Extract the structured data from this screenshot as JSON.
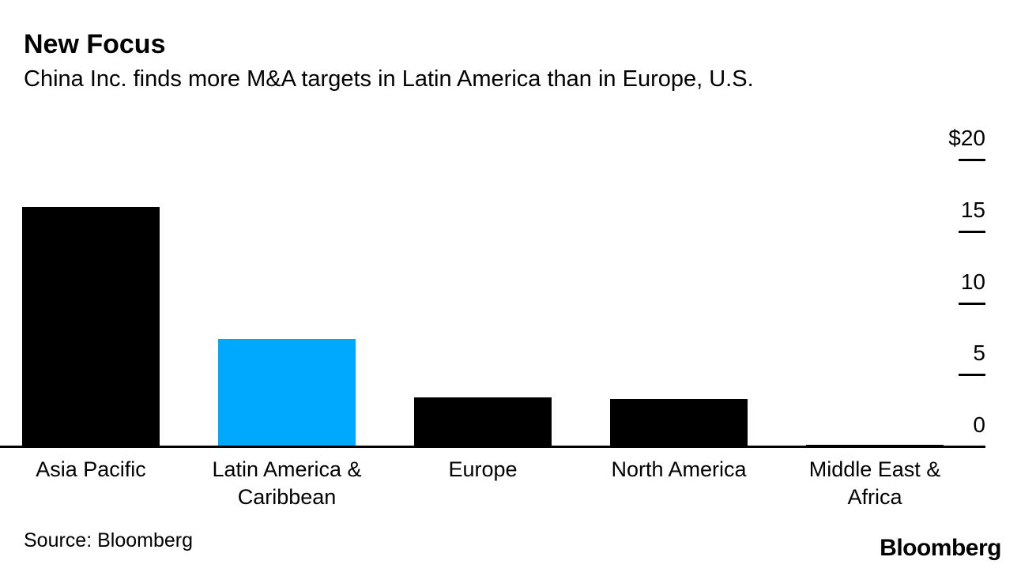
{
  "header": {
    "title": "New Focus",
    "subtitle": "China Inc. finds more M&A targets in Latin America than in Europe, U.S."
  },
  "footer": {
    "source_label": "Source: Bloomberg",
    "brand": "Bloomberg"
  },
  "colors": {
    "bar_default": "#000000",
    "bar_highlight": "#00a9fd",
    "axis": "#000000",
    "text": "#000000",
    "background": "#ffffff"
  },
  "chart_data": {
    "type": "bar",
    "title": "New Focus",
    "subtitle": "China Inc. finds more M&A targets in Latin America than in Europe, U.S.",
    "categories": [
      "Asia Pacific",
      "Latin America &\nCaribbean",
      "Europe",
      "North America",
      "Middle East &\nAfrica"
    ],
    "values": [
      16.8,
      7.6,
      3.5,
      3.4,
      0.2
    ],
    "bar_colors": [
      "#000000",
      "#00a9fd",
      "#000000",
      "#000000",
      "#000000"
    ],
    "highlighted_category": "Latin America &\nCaribbean",
    "xlabel": "",
    "ylabel": "",
    "ylim": [
      0,
      20
    ],
    "y_axis_side": "right",
    "y_ticks": [
      {
        "label": "$20",
        "value": 20
      },
      {
        "label": "15",
        "value": 15
      },
      {
        "label": "10",
        "value": 10
      },
      {
        "label": "5",
        "value": 5
      },
      {
        "label": "0",
        "value": 0
      }
    ],
    "grid": "off",
    "legend": "none",
    "source": "Source: Bloomberg",
    "brand": "Bloomberg"
  }
}
